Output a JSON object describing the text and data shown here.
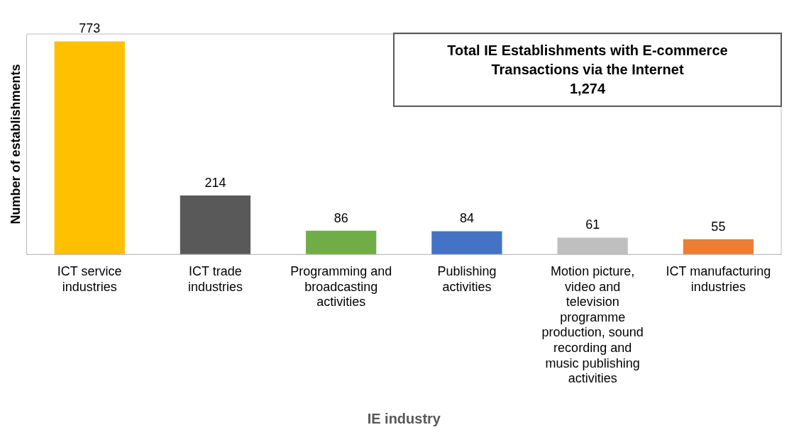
{
  "chart_data": {
    "type": "bar",
    "xlabel": "IE industry",
    "ylabel": "Number of establishments",
    "categories": [
      "ICT service industries",
      "ICT trade industries",
      "Programming and broadcasting activities",
      "Publishing activities",
      "Motion picture, video and television programme production, sound recording and music publishing activities",
      "ICT manufacturing industries"
    ],
    "values": [
      773,
      214,
      86,
      84,
      61,
      55
    ],
    "colors": [
      "#ffc000",
      "#595959",
      "#70ad47",
      "#4472c4",
      "#bfbfbf",
      "#ed7d31"
    ],
    "data_labels": true,
    "grid": false,
    "legend": false,
    "annotations": [
      "Total IE Establishments with E-commerce Transactions via the Internet",
      "1,274"
    ]
  }
}
